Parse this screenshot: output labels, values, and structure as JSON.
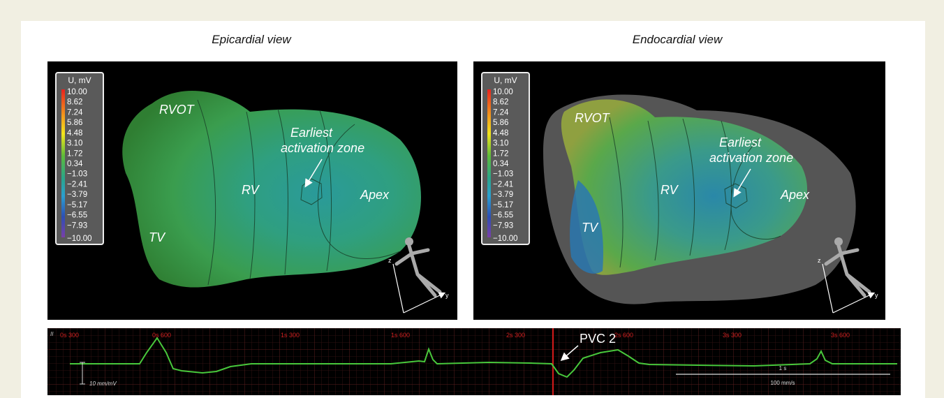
{
  "panels": [
    {
      "title": "Epicardial view",
      "legend": {
        "title": "U, mV",
        "labels": [
          "10.00",
          "8.62",
          "7.24",
          "5.86",
          "4.48",
          "3.10",
          "1.72",
          "0.34",
          "−1.03",
          "−2.41",
          "−3.79",
          "−5.17",
          "−6.55",
          "−7.93",
          "−10.00"
        ]
      },
      "labels": {
        "rvot": "RVOT",
        "rv": "RV",
        "tv": "TV",
        "apex": "Apex",
        "zone": [
          "Earliest",
          "activation zone"
        ]
      },
      "axes": [
        "z",
        "y"
      ]
    },
    {
      "title": "Endocardial view",
      "legend": {
        "title": "U, mV",
        "labels": [
          "10.00",
          "8.62",
          "7.24",
          "5.86",
          "4.48",
          "3.10",
          "1.72",
          "0.34",
          "−1.03",
          "−2.41",
          "−3.79",
          "−5.17",
          "−6.55",
          "−7.93",
          "−10.00"
        ]
      },
      "labels": {
        "rvot": "RVOT",
        "rv": "RV",
        "tv": "TV",
        "apex": "Apex",
        "zone": [
          "Earliest",
          "activation zone"
        ]
      },
      "axes": [
        "z",
        "y"
      ]
    }
  ],
  "ecg": {
    "lead": "II",
    "times": [
      "0s 300",
      "0s 600",
      "1s 300",
      "1s 600",
      "2s 300",
      "2s 600",
      "3s 300",
      "3s 600"
    ],
    "annotation": "PVC 2",
    "gain": "10 mm/mV",
    "time_scale": "1 s",
    "speed": "100 mm/s"
  }
}
